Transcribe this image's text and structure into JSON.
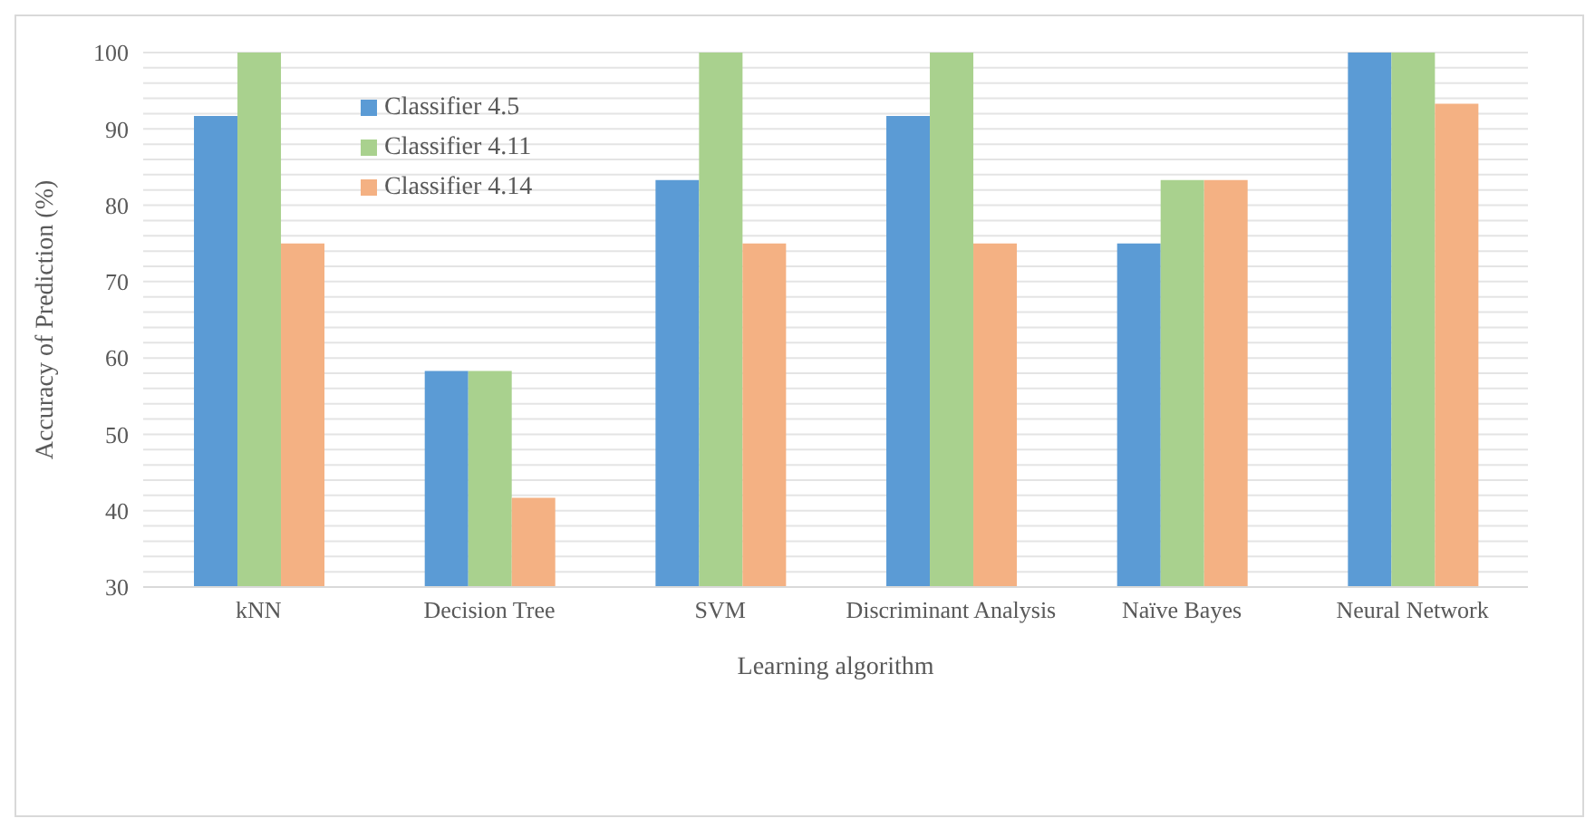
{
  "chart_data": {
    "type": "bar",
    "xlabel": "Learning algorithm",
    "ylabel": "Accuracy of Prediction (%)",
    "categories": [
      "kNN",
      "Decision Tree",
      "SVM",
      "Discriminant Analysis",
      "Naïve Bayes",
      "Neural Network"
    ],
    "series": [
      {
        "name": "Classifier 4.5",
        "color": "#5b9bd5",
        "values": [
          91.7,
          58.3,
          83.3,
          91.7,
          75,
          100
        ]
      },
      {
        "name": "Classifier 4.11",
        "color": "#a9d18e",
        "values": [
          100,
          58.3,
          100,
          100,
          83.3,
          100
        ]
      },
      {
        "name": "Classifier 4.14",
        "color": "#f4b183",
        "values": [
          75,
          41.7,
          75,
          75,
          83.3,
          93.3
        ]
      }
    ],
    "ylim": [
      30,
      100
    ],
    "yticks": [
      30,
      {
        "value": 32,
        "label": null
      },
      {
        "value": 34,
        "label": null
      },
      {
        "value": 36,
        "label": null
      },
      {
        "value": 38,
        "label": null
      },
      40,
      {
        "value": 42,
        "label": null
      },
      {
        "value": 44,
        "label": null
      },
      {
        "value": 46,
        "label": null
      },
      {
        "value": 48,
        "label": null
      },
      50,
      {
        "value": 52,
        "label": null
      },
      {
        "value": 54,
        "label": null
      },
      {
        "value": 56,
        "label": null
      },
      {
        "value": 58,
        "label": null
      },
      60,
      {
        "value": 62,
        "label": null
      },
      {
        "value": 64,
        "label": null
      },
      {
        "value": 66,
        "label": null
      },
      {
        "value": 68,
        "label": null
      },
      70,
      {
        "value": 72,
        "label": null
      },
      {
        "value": 74,
        "label": null
      },
      {
        "value": 76,
        "label": null
      },
      {
        "value": 78,
        "label": null
      },
      80,
      {
        "value": 82,
        "label": null
      },
      {
        "value": 84,
        "label": null
      },
      {
        "value": 86,
        "label": null
      },
      {
        "value": 88,
        "label": null
      },
      90,
      {
        "value": 92,
        "label": null
      },
      {
        "value": 94,
        "label": null
      },
      {
        "value": 96,
        "label": null
      },
      {
        "value": 98,
        "label": null
      },
      100
    ],
    "grid": "y",
    "legend": "top left"
  }
}
